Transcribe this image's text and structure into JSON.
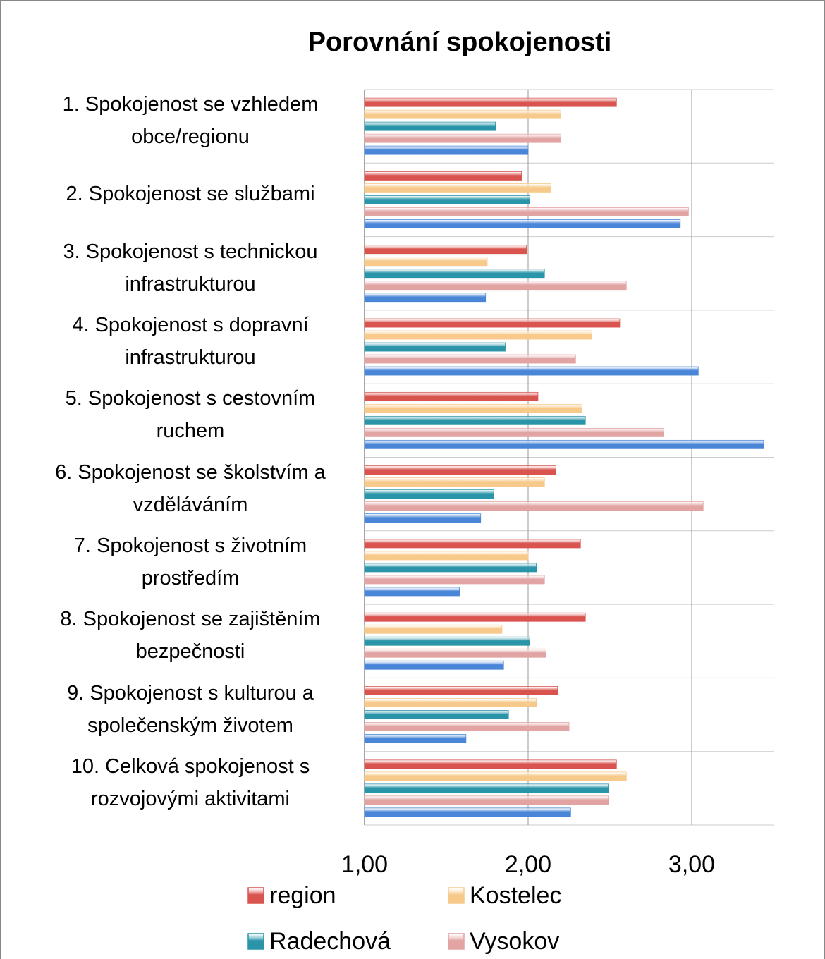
{
  "chart_data": {
    "type": "hbar",
    "title": "Porovnání spokojenosti",
    "categories": [
      "1. Spokojenost se vzhledem obce/regionu",
      "2. Spokojenost se službami",
      "3. Spokojenost s technickou infrastrukturou",
      "4. Spokojenost s dopravní infrastrukturou",
      "5. Spokojenost s cestovním ruchem",
      "6. Spokojenost se školstvím a vzděláváním",
      "7. Spokojenost s životním prostředím",
      "8. Spokojenost se zajištěním bezpečnosti",
      "9. Spokojenost s kulturou a společenským životem",
      "10. Celková spokojenost s rozvojovými aktivitami"
    ],
    "series": [
      {
        "name": "region",
        "color": "#d9534f",
        "values": [
          2.54,
          1.96,
          1.99,
          2.56,
          2.06,
          2.17,
          2.32,
          2.35,
          2.18,
          2.54
        ]
      },
      {
        "name": "Kostelec",
        "color": "#f7c98a",
        "values": [
          2.2,
          2.14,
          1.75,
          2.39,
          2.33,
          2.1,
          2.0,
          1.84,
          2.05,
          2.6
        ]
      },
      {
        "name": "Radechová",
        "color": "#2a95a8",
        "values": [
          1.8,
          2.01,
          2.1,
          1.86,
          2.35,
          1.79,
          2.05,
          2.01,
          1.88,
          2.49
        ]
      },
      {
        "name": "Vysokov",
        "color": "#e2a3a3",
        "values": [
          2.2,
          2.98,
          2.6,
          2.29,
          2.83,
          3.07,
          2.1,
          2.11,
          2.25,
          2.49
        ]
      },
      {
        "color": "#4a86d8",
        "values": [
          2.0,
          2.93,
          1.74,
          3.04,
          3.44,
          1.71,
          1.58,
          1.85,
          1.62,
          2.26
        ]
      }
    ],
    "xlim": [
      1,
      3.5
    ],
    "xticks": [
      {
        "value": 1,
        "label": "1,00"
      },
      {
        "value": 2,
        "label": "2,00"
      },
      {
        "value": 3,
        "label": "3,00"
      }
    ],
    "grid": true
  }
}
